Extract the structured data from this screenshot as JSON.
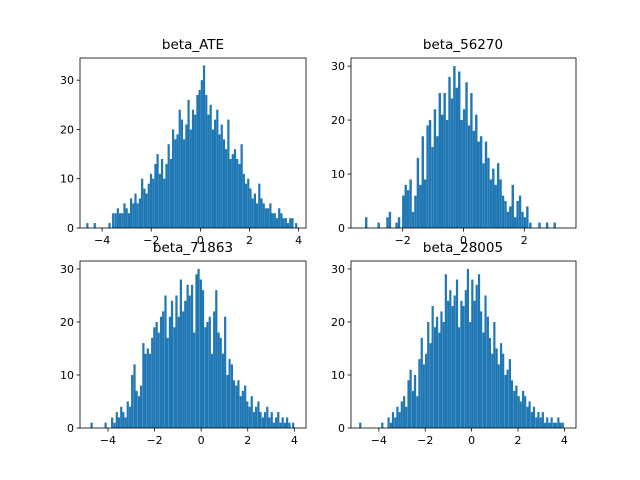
{
  "chart_data": [
    {
      "type": "bar",
      "title": "beta_ATE",
      "xlabel": "",
      "ylabel": "",
      "xlim": [
        -4.9,
        4.3
      ],
      "ylim": [
        0,
        34.5
      ],
      "xticks": [
        -4,
        -2,
        0,
        2,
        4
      ],
      "yticks": [
        0,
        10,
        20,
        30
      ],
      "bin_width": 0.09,
      "x": [
        -4.6,
        -4.3,
        -3.7,
        -3.55,
        -3.45,
        -3.36,
        -3.27,
        -3.18,
        -3.09,
        -3.0,
        -2.91,
        -2.82,
        -2.73,
        -2.64,
        -2.55,
        -2.46,
        -2.37,
        -2.28,
        -2.19,
        -2.1,
        -2.01,
        -1.92,
        -1.83,
        -1.74,
        -1.65,
        -1.56,
        -1.47,
        -1.38,
        -1.29,
        -1.2,
        -1.11,
        -1.02,
        -0.93,
        -0.84,
        -0.75,
        -0.66,
        -0.57,
        -0.48,
        -0.39,
        -0.3,
        -0.21,
        -0.12,
        -0.03,
        0.06,
        0.15,
        0.24,
        0.33,
        0.42,
        0.51,
        0.6,
        0.69,
        0.78,
        0.87,
        0.96,
        1.05,
        1.14,
        1.23,
        1.32,
        1.41,
        1.5,
        1.59,
        1.68,
        1.77,
        1.86,
        1.95,
        2.04,
        2.13,
        2.22,
        2.31,
        2.4,
        2.49,
        2.58,
        2.67,
        2.76,
        2.85,
        2.94,
        3.03,
        3.12,
        3.21,
        3.3,
        3.39,
        3.48,
        3.57,
        3.66,
        3.75,
        3.9
      ],
      "values": [
        1,
        1,
        1,
        3,
        3,
        4,
        3,
        3,
        5,
        4,
        3,
        6,
        5,
        7,
        5,
        6,
        10,
        8,
        7,
        9,
        11,
        10,
        13,
        15,
        11,
        14,
        10,
        13,
        17,
        14,
        20,
        18,
        19,
        24,
        22,
        18,
        21,
        26,
        20,
        24,
        23,
        27,
        28,
        30,
        33,
        27,
        23,
        25,
        20,
        22,
        24,
        19,
        21,
        18,
        16,
        22,
        14,
        15,
        16,
        14,
        13,
        17,
        11,
        9,
        10,
        8,
        6,
        7,
        5,
        9,
        6,
        5,
        4,
        4,
        5,
        3,
        3,
        2,
        4,
        3,
        2,
        2,
        1,
        2,
        2,
        1
      ]
    },
    {
      "type": "bar",
      "title": "beta_56270",
      "xlabel": "",
      "ylabel": "",
      "xlim": [
        -3.7,
        3.7
      ],
      "ylim": [
        0,
        31.5
      ],
      "xticks": [
        -2,
        0,
        2
      ],
      "yticks": [
        0,
        10,
        20,
        30
      ],
      "bin_width": 0.079,
      "x": [
        -3.2,
        -2.79,
        -2.5,
        -2.42,
        -2.2,
        -2.12,
        -1.98,
        -1.9,
        -1.82,
        -1.74,
        -1.66,
        -1.58,
        -1.5,
        -1.42,
        -1.34,
        -1.26,
        -1.18,
        -1.1,
        -1.02,
        -0.94,
        -0.86,
        -0.78,
        -0.7,
        -0.62,
        -0.54,
        -0.46,
        -0.38,
        -0.3,
        -0.22,
        -0.14,
        -0.06,
        0.02,
        0.1,
        0.18,
        0.26,
        0.34,
        0.42,
        0.5,
        0.58,
        0.66,
        0.74,
        0.82,
        0.9,
        0.98,
        1.06,
        1.14,
        1.22,
        1.3,
        1.38,
        1.46,
        1.54,
        1.62,
        1.7,
        1.78,
        1.86,
        1.94,
        2.02,
        2.1,
        2.2,
        2.5,
        2.75,
        3.0
      ],
      "values": [
        2,
        1,
        2,
        3,
        1,
        2,
        6,
        8,
        7,
        9,
        3,
        6,
        13,
        8,
        17,
        9,
        19,
        20,
        15,
        22,
        17,
        25,
        21,
        25,
        20,
        28,
        24,
        30,
        26,
        29,
        20,
        22,
        27,
        19,
        25,
        18,
        21,
        16,
        17,
        12,
        16,
        13,
        9,
        11,
        8,
        12,
        9,
        6,
        5,
        3,
        4,
        8,
        2,
        5,
        6,
        3,
        2,
        4,
        1,
        1,
        1,
        1
      ]
    },
    {
      "type": "bar",
      "title": "beta_71863",
      "xlabel": "",
      "ylabel": "",
      "xlim": [
        -5.2,
        4.5
      ],
      "ylim": [
        0,
        31.5
      ],
      "xticks": [
        -4,
        -2,
        0,
        2,
        4
      ],
      "yticks": [
        0,
        10,
        20,
        30
      ],
      "bin_width": 0.095,
      "x": [
        -4.7,
        -4.1,
        -3.82,
        -3.72,
        -3.62,
        -3.53,
        -3.43,
        -3.34,
        -3.24,
        -3.15,
        -3.05,
        -2.96,
        -2.86,
        -2.77,
        -2.67,
        -2.58,
        -2.48,
        -2.39,
        -2.29,
        -2.2,
        -2.1,
        -2.01,
        -1.91,
        -1.82,
        -1.72,
        -1.63,
        -1.53,
        -1.44,
        -1.34,
        -1.25,
        -1.15,
        -1.06,
        -0.96,
        -0.87,
        -0.77,
        -0.68,
        -0.58,
        -0.49,
        -0.39,
        -0.3,
        -0.2,
        -0.11,
        -0.01,
        0.08,
        0.18,
        0.27,
        0.37,
        0.46,
        0.56,
        0.65,
        0.75,
        0.84,
        0.94,
        1.03,
        1.13,
        1.22,
        1.32,
        1.41,
        1.51,
        1.6,
        1.7,
        1.79,
        1.89,
        1.98,
        2.08,
        2.17,
        2.27,
        2.36,
        2.46,
        2.55,
        2.65,
        2.74,
        2.84,
        2.93,
        3.03,
        3.12,
        3.22,
        3.31,
        3.41,
        3.5,
        3.6,
        3.69,
        3.79,
        3.95
      ],
      "values": [
        1,
        1,
        2,
        1,
        3,
        2,
        4,
        3,
        2,
        5,
        4,
        10,
        12,
        7,
        6,
        8,
        16,
        14,
        15,
        14,
        17,
        19,
        20,
        18,
        21,
        22,
        25,
        17,
        21,
        24,
        19,
        25,
        21,
        28,
        22,
        24,
        27,
        25,
        27,
        18,
        29,
        30,
        28,
        26,
        19,
        20,
        21,
        14,
        22,
        26,
        18,
        17,
        14,
        21,
        10,
        13,
        12,
        9,
        8,
        9,
        6,
        7,
        8,
        5,
        4,
        6,
        3,
        4,
        5,
        3,
        2,
        3,
        4,
        2,
        3,
        1,
        2,
        3,
        1,
        2,
        1,
        2,
        1,
        1
      ]
    },
    {
      "type": "bar",
      "title": "beta_28005",
      "xlabel": "",
      "ylabel": "",
      "xlim": [
        -5.2,
        4.5
      ],
      "ylim": [
        0,
        31.5
      ],
      "xticks": [
        -4,
        -2,
        0,
        2,
        4
      ],
      "yticks": [
        0,
        10,
        20,
        30
      ],
      "bin_width": 0.095,
      "x": [
        -4.8,
        -3.85,
        -3.58,
        -3.48,
        -3.39,
        -3.29,
        -3.2,
        -3.1,
        -3.01,
        -2.91,
        -2.82,
        -2.72,
        -2.63,
        -2.53,
        -2.44,
        -2.34,
        -2.25,
        -2.15,
        -2.06,
        -1.96,
        -1.87,
        -1.77,
        -1.68,
        -1.58,
        -1.49,
        -1.39,
        -1.3,
        -1.2,
        -1.11,
        -1.01,
        -0.92,
        -0.82,
        -0.73,
        -0.63,
        -0.54,
        -0.44,
        -0.35,
        -0.25,
        -0.16,
        -0.06,
        0.03,
        0.13,
        0.22,
        0.32,
        0.41,
        0.51,
        0.6,
        0.7,
        0.79,
        0.89,
        0.98,
        1.08,
        1.17,
        1.27,
        1.36,
        1.46,
        1.55,
        1.65,
        1.74,
        1.84,
        1.93,
        2.03,
        2.12,
        2.22,
        2.31,
        2.41,
        2.5,
        2.6,
        2.69,
        2.79,
        2.88,
        2.98,
        3.07,
        3.17,
        3.26,
        3.36,
        3.45,
        3.55,
        3.64,
        3.74,
        3.83,
        3.93
      ],
      "values": [
        1,
        1,
        2,
        1,
        3,
        2,
        4,
        3,
        5,
        6,
        4,
        9,
        11,
        7,
        10,
        6,
        13,
        17,
        12,
        14,
        20,
        16,
        23,
        19,
        21,
        18,
        22,
        20,
        29,
        24,
        26,
        23,
        25,
        28,
        19,
        24,
        23,
        26,
        30,
        20,
        28,
        24,
        27,
        29,
        22,
        18,
        25,
        21,
        17,
        14,
        20,
        15,
        12,
        16,
        14,
        10,
        11,
        13,
        9,
        7,
        8,
        6,
        5,
        7,
        6,
        4,
        5,
        3,
        4,
        2,
        3,
        2,
        3,
        1,
        2,
        1,
        2,
        1,
        1,
        2,
        1,
        1
      ]
    }
  ]
}
